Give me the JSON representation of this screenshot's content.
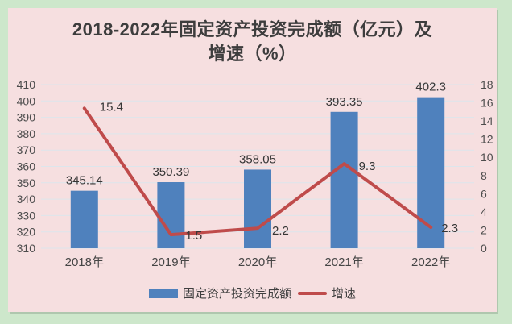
{
  "chart_data": {
    "type": "combo",
    "title": "2018-2022年固定资产投资完成额（亿元）及增速（%）",
    "title_line1": "2018-2022年固定资产投资完成额（亿元）及",
    "title_line2": "增速（%）",
    "categories": [
      "2018年",
      "2019年",
      "2020年",
      "2021年",
      "2022年"
    ],
    "series": [
      {
        "name": "固定资产投资完成额",
        "type": "bar",
        "axis": "left",
        "values": [
          345.14,
          350.39,
          358.05,
          393.35,
          402.3
        ],
        "labels": [
          "345.14",
          "350.39",
          "358.05",
          "393.35",
          "402.3"
        ],
        "color": "#4f81bd"
      },
      {
        "name": "增速",
        "type": "line",
        "axis": "right",
        "values": [
          15.4,
          1.5,
          2.2,
          9.3,
          2.3
        ],
        "labels": [
          "15.4",
          "1.5",
          "2.2",
          "9.3",
          "2.3"
        ],
        "color": "#bf4b4b"
      }
    ],
    "left_axis": {
      "min": 310,
      "max": 410,
      "step": 10,
      "ticks": [
        "310",
        "320",
        "330",
        "340",
        "350",
        "360",
        "370",
        "380",
        "390",
        "400",
        "410"
      ]
    },
    "right_axis": {
      "min": 0,
      "max": 18,
      "step": 2,
      "ticks": [
        "0",
        "2",
        "4",
        "6",
        "8",
        "10",
        "12",
        "14",
        "16",
        "18"
      ]
    },
    "grid": true,
    "legend_position": "bottom",
    "colors": {
      "background_outer": "#cde7cb",
      "background_panel": "#f6dfe0",
      "gridline": "#dce6ec",
      "bar": "#4f81bd",
      "line": "#bf4b4b",
      "text": "#3d3d3d"
    }
  }
}
